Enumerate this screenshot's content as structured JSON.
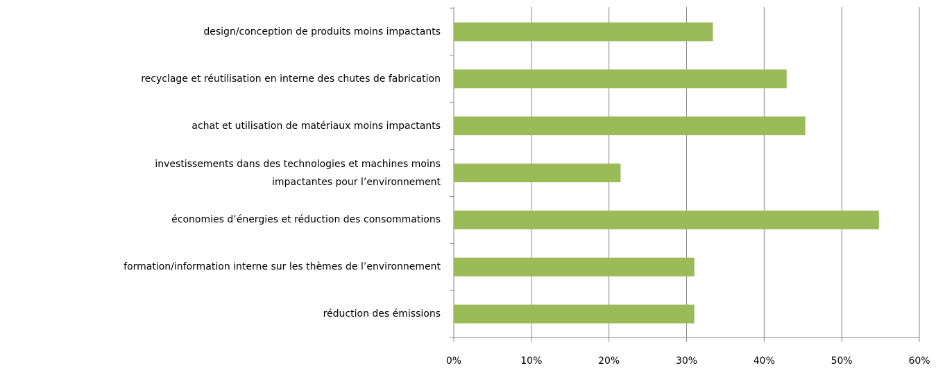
{
  "chart_data": {
    "type": "bar",
    "orientation": "horizontal",
    "categories": [
      "design/conception de produits moins impactants",
      "recyclage et réutilisation en interne des chutes de fabrication",
      "achat et utilisation de matériaux moins impactants",
      "investissements dans des technologies et machines moins\nimpactantes pour l’environnement",
      "économies d’énergies et réduction des consommations",
      "formation/information interne sur les thèmes de l’environnement",
      "réduction des émissions"
    ],
    "values": [
      33.4,
      42.9,
      45.3,
      21.5,
      54.8,
      31.0,
      31.0
    ],
    "color": "#9bbb59",
    "xlim": [
      0,
      60
    ],
    "xticks": [
      {
        "value": 0,
        "label": "0%"
      },
      {
        "value": 10,
        "label": "10%"
      },
      {
        "value": 20,
        "label": "20%"
      },
      {
        "value": 30,
        "label": "30%"
      },
      {
        "value": 40,
        "label": "40%"
      },
      {
        "value": 50,
        "label": "50%"
      },
      {
        "value": 60,
        "label": "60%"
      }
    ],
    "grid": true
  }
}
